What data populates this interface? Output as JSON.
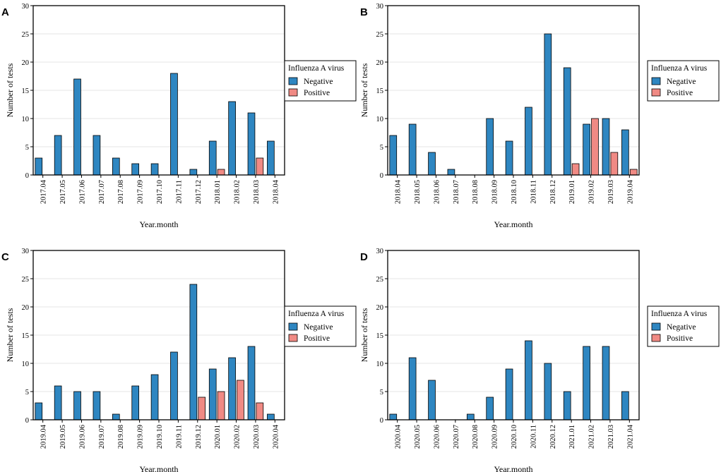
{
  "colors": {
    "negative": "#2e86c1",
    "positive": "#f08a84",
    "grid": "#e6e6e6",
    "outline": "#000000"
  },
  "legend": {
    "title": "Influenza A virus",
    "negative_label": "Negative",
    "positive_label": "Positive"
  },
  "chart_data": [
    {
      "panel": "A",
      "type": "bar",
      "xlabel": "Year.month",
      "ylabel": "Number of tests",
      "ylim": [
        0,
        30
      ],
      "yticks": [
        0,
        5,
        10,
        15,
        20,
        25,
        30
      ],
      "categories": [
        "2017.04",
        "2017.05",
        "2017.06",
        "2017.07",
        "2017.08",
        "2017.09",
        "2017.10",
        "2017.11",
        "2017.12",
        "2018.01",
        "2018.02",
        "2018.03",
        "2018.04"
      ],
      "series": [
        {
          "name": "Negative",
          "values": [
            3,
            7,
            17,
            7,
            3,
            2,
            2,
            18,
            1,
            6,
            13,
            11,
            6
          ]
        },
        {
          "name": "Positive",
          "values": [
            0,
            0,
            0,
            0,
            0,
            0,
            0,
            0,
            0,
            1,
            0,
            3,
            0
          ]
        }
      ]
    },
    {
      "panel": "B",
      "type": "bar",
      "xlabel": "Year.month",
      "ylabel": "Number of tests",
      "ylim": [
        0,
        30
      ],
      "yticks": [
        0,
        5,
        10,
        15,
        20,
        25,
        30
      ],
      "categories": [
        "2018.04",
        "2018.05",
        "2018.06",
        "2018.07",
        "2018.08",
        "2018.09",
        "2018.10",
        "2018.11",
        "2018.12",
        "2019.01",
        "2019.02",
        "2019.03",
        "2019.04"
      ],
      "series": [
        {
          "name": "Negative",
          "values": [
            7,
            9,
            4,
            1,
            0,
            10,
            6,
            12,
            25,
            19,
            9,
            10,
            8
          ]
        },
        {
          "name": "Positive",
          "values": [
            0,
            0,
            0,
            0,
            0,
            0,
            0,
            0,
            0,
            2,
            10,
            4,
            1
          ]
        }
      ]
    },
    {
      "panel": "C",
      "type": "bar",
      "xlabel": "Year.month",
      "ylabel": "Number of tests",
      "ylim": [
        0,
        30
      ],
      "yticks": [
        0,
        5,
        10,
        15,
        20,
        25,
        30
      ],
      "categories": [
        "2019.04",
        "2019.05",
        "2019.06",
        "2019.07",
        "2019.08",
        "2019.09",
        "2019.10",
        "2019.11",
        "2019.12",
        "2020.01",
        "2020.02",
        "2020.03",
        "2020.04"
      ],
      "series": [
        {
          "name": "Negative",
          "values": [
            3,
            6,
            5,
            5,
            1,
            6,
            8,
            12,
            24,
            9,
            11,
            13,
            1
          ]
        },
        {
          "name": "Positive",
          "values": [
            0,
            0,
            0,
            0,
            0,
            0,
            0,
            0,
            4,
            5,
            7,
            3,
            0
          ]
        }
      ]
    },
    {
      "panel": "D",
      "type": "bar",
      "xlabel": "Year.month",
      "ylabel": "Number of tests",
      "ylim": [
        0,
        30
      ],
      "yticks": [
        0,
        5,
        10,
        15,
        20,
        25,
        30
      ],
      "categories": [
        "2020.04",
        "2020.05",
        "2020.06",
        "2020.07",
        "2020.08",
        "2020.09",
        "2020.10",
        "2020.11",
        "2020.12",
        "2021.01",
        "2021.02",
        "2021.03",
        "2021.04"
      ],
      "series": [
        {
          "name": "Negative",
          "values": [
            1,
            11,
            7,
            0,
            1,
            4,
            9,
            14,
            10,
            5,
            13,
            13,
            5
          ]
        },
        {
          "name": "Positive",
          "values": [
            0,
            0,
            0,
            0,
            0,
            0,
            0,
            0,
            0,
            0,
            0,
            0,
            0
          ]
        }
      ]
    }
  ]
}
